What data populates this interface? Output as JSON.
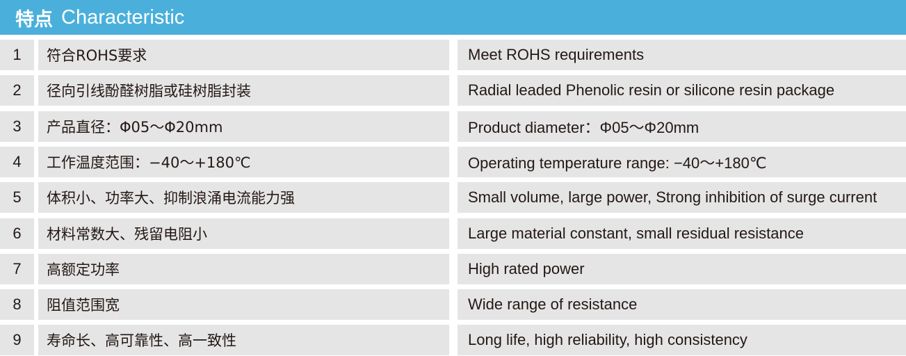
{
  "header": {
    "title_zh": "特点",
    "title_en": "Characteristic",
    "color": "#4ab0db"
  },
  "rows": [
    {
      "num": "1",
      "zh": "符合ROHS要求",
      "en": "Meet ROHS requirements"
    },
    {
      "num": "2",
      "zh": "径向引线酚醛树脂或硅树脂封装",
      "en": "Radial leaded Phenolic resin or silicone resin package"
    },
    {
      "num": "3",
      "zh": "产品直径：Φ05～Φ20mm",
      "en": "Product diameter：Φ05～Φ20mm"
    },
    {
      "num": "4",
      "zh": "工作温度范围：−40～+180℃",
      "en": "Operating temperature range: −40～+180℃"
    },
    {
      "num": "5",
      "zh": "体积小、功率大、抑制浪涌电流能力强",
      "en": "Small volume, large power, Strong inhibition of surge current"
    },
    {
      "num": "6",
      "zh": "材料常数大、残留电阻小",
      "en": "Large material constant, small residual resistance"
    },
    {
      "num": "7",
      "zh": "高额定功率",
      "en": "High rated power"
    },
    {
      "num": "8",
      "zh": "阻值范围宽",
      "en": "Wide range of resistance"
    },
    {
      "num": "9",
      "zh": "寿命长、高可靠性、高一致性",
      "en": "Long life, high reliability, high consistency"
    }
  ]
}
